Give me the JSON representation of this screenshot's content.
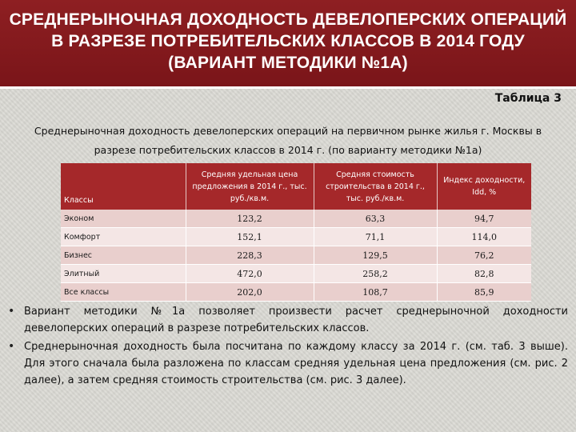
{
  "slide": {
    "title": "СРЕДНЕРЫНОЧНАЯ ДОХОДНОСТЬ ДЕВЕЛОПЕРСКИХ ОПЕРАЦИЙ В РАЗРЕЗЕ ПОТРЕБИТЕЛЬСКИХ КЛАССОВ В 2014 ГОДУ (ВАРИАНТ МЕТОДИКИ №1А)",
    "table_label": "Таблица 3",
    "caption": "Среднерыночная доходность девелоперских операций на первичном рынке жилья г. Москвы в разрезе потребительских классов в 2014 г. (по варианту методики №1а)"
  },
  "table": {
    "headers": [
      "Классы",
      "Средняя удельная цена предложения в 2014 г., тыс. руб./кв.м.",
      "Средняя стоимость строительства в 2014 г., тыс. руб./кв.м.",
      "Индекс доходности, Idd, %"
    ],
    "rows": [
      [
        "Эконом",
        "123,2",
        "63,3",
        "94,7"
      ],
      [
        "Комфорт",
        "152,1",
        "71,1",
        "114,0"
      ],
      [
        "Бизнес",
        "228,3",
        "129,5",
        "76,2"
      ],
      [
        "Элитный",
        "472,0",
        "258,2",
        "82,8"
      ],
      [
        "Все классы",
        "202,0",
        "108,7",
        "85,9"
      ]
    ]
  },
  "bullets": [
    "Вариант методики №1а позволяет произвести расчет среднерыночной доходности девелоперских операций в разрезе потребительских классов.",
    "Среднерыночная доходность была посчитана по каждому классу за 2014 г. (см. таб. 3 выше). Для этого сначала была разложена по классам средняя удельная цена предложения (см. рис. 2 далее), а затем средняя стоимость строительства (см. рис. 3 далее)."
  ],
  "colors": {
    "title_bg": "#8e1f22",
    "header_bg": "#a5282a",
    "row_odd": "#e9cfcd",
    "row_even": "#f4e6e5"
  }
}
